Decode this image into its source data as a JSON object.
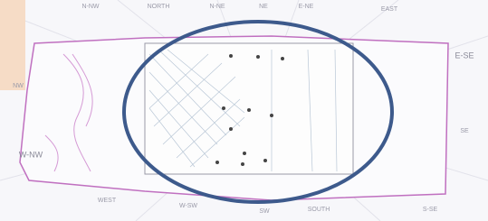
{
  "labels": [
    "N-NW",
    "NORTH",
    "N-NE",
    "NE",
    "E-NE",
    "EAST",
    "E-SE",
    "SE",
    "S-SE",
    "SOUTH",
    "SW",
    "W-SW",
    "WEST",
    "W-NW",
    "NW"
  ]
}
